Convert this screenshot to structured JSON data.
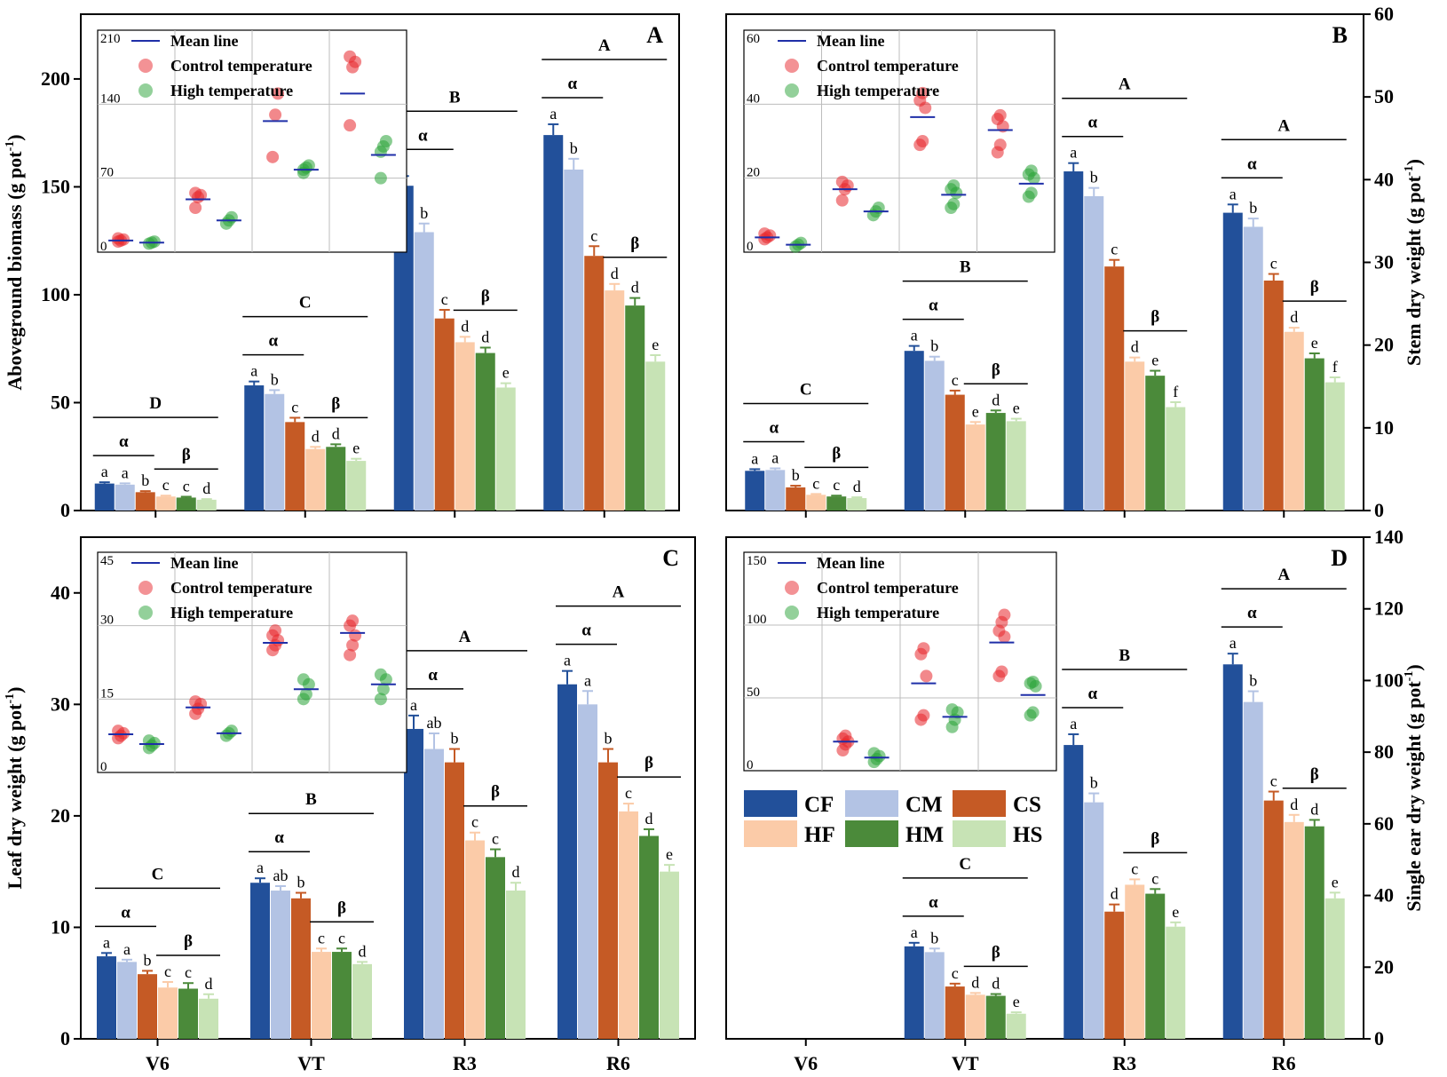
{
  "chart_data": [
    {
      "type": "bar",
      "panel_letter": "A",
      "ylabel_text": "Aboveground biomass (g pot",
      "ylabel_sup": "-1",
      "ylabel_close": ")",
      "ylabel_side": "left",
      "ylim": [
        0,
        230
      ],
      "yticks": [
        0,
        50,
        100,
        150,
        200
      ],
      "categories": [
        "V6",
        "VT",
        "R3",
        "R6"
      ],
      "series": [
        {
          "name": "CF",
          "values": [
            12.5,
            58,
            150.5,
            174
          ],
          "errors": [
            0.6,
            1.8,
            4.5,
            5
          ]
        },
        {
          "name": "CM",
          "values": [
            12,
            54,
            129,
            158
          ],
          "errors": [
            0.6,
            1.8,
            4,
            5
          ]
        },
        {
          "name": "CS",
          "values": [
            8.5,
            41,
            89,
            118
          ],
          "errors": [
            0.5,
            2,
            4,
            4.5
          ]
        },
        {
          "name": "HF",
          "values": [
            6.5,
            28.5,
            78,
            102
          ],
          "errors": [
            0.4,
            1,
            2.5,
            3
          ]
        },
        {
          "name": "HM",
          "values": [
            6,
            29.5,
            73,
            95
          ],
          "errors": [
            0.4,
            1.2,
            2.5,
            3.5
          ]
        },
        {
          "name": "HS",
          "values": [
            5,
            23,
            57,
            69
          ],
          "errors": [
            0.3,
            1,
            2,
            3
          ]
        }
      ],
      "letters": [
        [
          "a",
          "a",
          "b",
          "c",
          "c",
          "d"
        ],
        [
          "a",
          "b",
          "c",
          "d",
          "d",
          "e"
        ],
        [
          "a",
          "b",
          "c",
          "d",
          "d",
          "e"
        ],
        [
          "a",
          "b",
          "c",
          "d",
          "d",
          "e"
        ]
      ],
      "stage_letters": [
        "D",
        "C",
        "B",
        "A"
      ],
      "alpha_label": "α",
      "beta_label": "β",
      "inset": {
        "ylim": [
          0,
          210
        ],
        "yticks": [
          0,
          70,
          140,
          210
        ],
        "groups": [
          {
            "pts": [
              10,
              11,
              12,
              13
            ],
            "mean": 11
          },
          {
            "pts": [
              8,
              9,
              10
            ],
            "mean": 9
          },
          {
            "pts": [
              42,
              52,
              54,
              56
            ],
            "mean": 50
          },
          {
            "pts": [
              27,
              30,
              33
            ],
            "mean": 30
          },
          {
            "pts": [
              90,
              130,
              150
            ],
            "mean": 124
          },
          {
            "pts": [
              78,
              80,
              82,
              75
            ],
            "mean": 78
          },
          {
            "pts": [
              120,
              175,
              180,
              185
            ],
            "mean": 150
          },
          {
            "pts": [
              70,
              100,
              105,
              95
            ],
            "mean": 92
          }
        ]
      }
    },
    {
      "type": "bar",
      "panel_letter": "B",
      "ylabel_text": "Stem dry weight (g pot",
      "ylabel_sup": "-1",
      "ylabel_close": ")",
      "ylabel_side": "right",
      "ylim": [
        0,
        60
      ],
      "yticks": [
        0,
        10,
        20,
        30,
        40,
        50,
        60
      ],
      "categories": [
        "V6",
        "VT",
        "R3",
        "R6"
      ],
      "series": [
        {
          "name": "CF",
          "values": [
            4.8,
            19.3,
            41,
            36
          ],
          "errors": [
            0.2,
            0.6,
            1,
            1
          ]
        },
        {
          "name": "CM",
          "values": [
            4.9,
            18.1,
            38,
            34.3
          ],
          "errors": [
            0.2,
            0.5,
            1,
            1
          ]
        },
        {
          "name": "CS",
          "values": [
            2.8,
            14,
            29.5,
            27.8
          ],
          "errors": [
            0.2,
            0.5,
            0.8,
            0.8
          ]
        },
        {
          "name": "HF",
          "values": [
            1.9,
            10.4,
            18,
            21.6
          ],
          "errors": [
            0.1,
            0.3,
            0.5,
            0.5
          ]
        },
        {
          "name": "HM",
          "values": [
            1.7,
            11.8,
            16.3,
            18.4
          ],
          "errors": [
            0.1,
            0.3,
            0.6,
            0.6
          ]
        },
        {
          "name": "HS",
          "values": [
            1.5,
            10.8,
            12.5,
            15.5
          ],
          "errors": [
            0.1,
            0.3,
            0.6,
            0.6
          ]
        }
      ],
      "letters": [
        [
          "a",
          "a",
          "b",
          "c",
          "c",
          "d"
        ],
        [
          "a",
          "b",
          "c",
          "e",
          "d",
          "e"
        ],
        [
          "a",
          "b",
          "c",
          "d",
          "e",
          "f"
        ],
        [
          "a",
          "b",
          "c",
          "d",
          "e",
          "f"
        ]
      ],
      "stage_letters": [
        "C",
        "B",
        "A",
        "A"
      ],
      "alpha_label": "α",
      "beta_label": "β",
      "inset": {
        "ylim": [
          0,
          60
        ],
        "yticks": [
          0,
          20,
          40,
          60
        ],
        "groups": [
          {
            "pts": [
              3.5,
              4,
              4.5,
              5
            ],
            "mean": 4
          },
          {
            "pts": [
              1.5,
              2,
              2.5
            ],
            "mean": 2
          },
          {
            "pts": [
              14,
              17,
              18,
              19
            ],
            "mean": 17
          },
          {
            "pts": [
              10,
              11,
              12
            ],
            "mean": 11
          },
          {
            "pts": [
              29,
              30,
              39,
              41,
              43
            ],
            "mean": 36.5
          },
          {
            "pts": [
              12,
              13,
              16,
              17,
              18
            ],
            "mean": 15.5
          },
          {
            "pts": [
              27,
              29,
              34,
              36,
              37
            ],
            "mean": 33
          },
          {
            "pts": [
              15,
              16,
              20,
              21,
              22
            ],
            "mean": 18.5
          }
        ]
      }
    },
    {
      "type": "bar",
      "panel_letter": "C",
      "ylabel_text": "Leaf dry weight (g pot",
      "ylabel_sup": "-1",
      "ylabel_close": ")",
      "ylabel_side": "left",
      "ylim": [
        0,
        45
      ],
      "yticks": [
        0,
        10,
        20,
        30,
        40
      ],
      "categories": [
        "V6",
        "VT",
        "R3",
        "R6"
      ],
      "series": [
        {
          "name": "CF",
          "values": [
            7.4,
            14,
            27.8,
            31.8
          ],
          "errors": [
            0.3,
            0.4,
            1.2,
            1.2
          ]
        },
        {
          "name": "CM",
          "values": [
            6.9,
            13.3,
            26,
            30
          ],
          "errors": [
            0.2,
            0.4,
            1.4,
            1.2
          ]
        },
        {
          "name": "CS",
          "values": [
            5.8,
            12.6,
            24.8,
            24.8
          ],
          "errors": [
            0.3,
            0.5,
            1.2,
            1.2
          ]
        },
        {
          "name": "HF",
          "values": [
            4.6,
            7.8,
            17.8,
            20.4
          ],
          "errors": [
            0.5,
            0.3,
            0.7,
            0.7
          ]
        },
        {
          "name": "HM",
          "values": [
            4.5,
            7.8,
            16.3,
            18.2
          ],
          "errors": [
            0.5,
            0.3,
            0.7,
            0.6
          ]
        },
        {
          "name": "HS",
          "values": [
            3.6,
            6.7,
            13.3,
            15
          ],
          "errors": [
            0.4,
            0.2,
            0.7,
            0.6
          ]
        }
      ],
      "letters": [
        [
          "a",
          "a",
          "b",
          "c",
          "c",
          "d"
        ],
        [
          "a",
          "ab",
          "b",
          "c",
          "c",
          "d"
        ],
        [
          "a",
          "ab",
          "b",
          "c",
          "c",
          "d"
        ],
        [
          "a",
          "a",
          "b",
          "c",
          "d",
          "e"
        ]
      ],
      "stage_letters": [
        "C",
        "B",
        "A",
        "A"
      ],
      "alpha_label": "α",
      "beta_label": "β",
      "inset": {
        "ylim": [
          0,
          45
        ],
        "yticks": [
          0,
          15,
          30,
          45
        ],
        "groups": [
          {
            "pts": [
              7,
              7.5,
              8,
              8.5
            ],
            "mean": 7.8
          },
          {
            "pts": [
              5,
              5.5,
              6,
              6.5
            ],
            "mean": 5.8
          },
          {
            "pts": [
              12,
              13,
              14,
              14.5
            ],
            "mean": 13.3
          },
          {
            "pts": [
              7.5,
              8,
              8.5
            ],
            "mean": 8
          },
          {
            "pts": [
              25,
              26,
              27,
              28,
              29
            ],
            "mean": 26.5
          },
          {
            "pts": [
              15,
              16,
              18,
              19
            ],
            "mean": 17
          },
          {
            "pts": [
              24,
              26,
              28,
              30,
              31
            ],
            "mean": 28.5
          },
          {
            "pts": [
              15,
              17,
              19,
              20
            ],
            "mean": 18
          }
        ]
      }
    },
    {
      "type": "bar",
      "panel_letter": "D",
      "ylabel_text": "Single ear dry weight (g pot",
      "ylabel_sup": "-1",
      "ylabel_close": ")",
      "ylabel_side": "right",
      "ylim": [
        0,
        140
      ],
      "yticks": [
        0,
        20,
        40,
        60,
        80,
        100,
        120,
        140
      ],
      "categories": [
        "V6",
        "VT",
        "R3",
        "R6"
      ],
      "series": [
        {
          "name": "CF",
          "values": [
            null,
            25.8,
            82,
            104.5
          ],
          "errors": [
            null,
            1,
            3,
            3
          ]
        },
        {
          "name": "CM",
          "values": [
            null,
            24.2,
            66,
            94
          ],
          "errors": [
            null,
            1,
            2.5,
            3
          ]
        },
        {
          "name": "CS",
          "values": [
            null,
            14.6,
            35.5,
            66.5
          ],
          "errors": [
            null,
            0.8,
            2,
            2.5
          ]
        },
        {
          "name": "HF",
          "values": [
            null,
            12.3,
            43,
            60.5
          ],
          "errors": [
            null,
            0.5,
            1.5,
            2
          ]
        },
        {
          "name": "HM",
          "values": [
            null,
            12,
            40.5,
            59.3
          ],
          "errors": [
            null,
            0.5,
            1.3,
            1.8
          ]
        },
        {
          "name": "HS",
          "values": [
            null,
            7,
            31.3,
            39.2
          ],
          "errors": [
            null,
            0.4,
            1.2,
            1.6
          ]
        }
      ],
      "letters": [
        [
          "",
          "",
          "",
          "",
          "",
          ""
        ],
        [
          "a",
          "b",
          "c",
          "d",
          "d",
          "e"
        ],
        [
          "a",
          "b",
          "d",
          "c",
          "c",
          "e"
        ],
        [
          "a",
          "b",
          "c",
          "d",
          "d",
          "e"
        ]
      ],
      "stage_letters": [
        "",
        "C",
        "B",
        "A"
      ],
      "alpha_label": "α",
      "beta_label": "β",
      "inset": {
        "ylim": [
          0,
          150
        ],
        "yticks": [
          0,
          50,
          100,
          150
        ],
        "groups": [
          {
            "pts": [
              14,
              18,
              20,
              22,
              24
            ],
            "mean": 20
          },
          {
            "pts": [
              6,
              8,
              10,
              12
            ],
            "mean": 9
          },
          {
            "pts": [
              35,
              38,
              65,
              80,
              84
            ],
            "mean": 60
          },
          {
            "pts": [
              30,
              35,
              40,
              42
            ],
            "mean": 37
          },
          {
            "pts": [
              65,
              68,
              92,
              96,
              102,
              107
            ],
            "mean": 88
          },
          {
            "pts": [
              38,
              40,
              58,
              60,
              61
            ],
            "mean": 52
          }
        ]
      }
    }
  ],
  "legend_inset": {
    "mean_line": "Mean line",
    "control": "Control temperature",
    "high": "High temperature"
  },
  "legend_main": {
    "entries": [
      {
        "name": "CF",
        "color": "#22509a"
      },
      {
        "name": "CM",
        "color": "#b3c3e4"
      },
      {
        "name": "CS",
        "color": "#c55a25"
      },
      {
        "name": "HF",
        "color": "#fbcba8"
      },
      {
        "name": "HM",
        "color": "#4b8a3a"
      },
      {
        "name": "HS",
        "color": "#c7e3b5"
      }
    ]
  },
  "colors": {
    "CF": "#22509a",
    "CM": "#b3c3e4",
    "CS": "#c55a25",
    "HF": "#fbcba8",
    "HM": "#4b8a3a",
    "HS": "#c7e3b5",
    "control_dot": "#e8262b",
    "high_dot": "#28a236",
    "mean_line": "#1f2fa8"
  }
}
